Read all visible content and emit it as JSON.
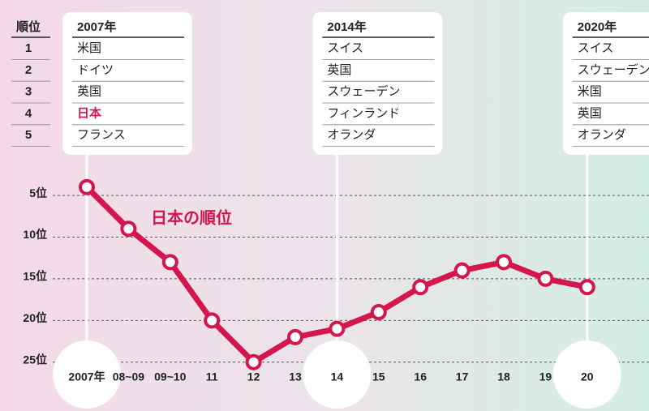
{
  "chart_data": {
    "type": "line",
    "categories": [
      "2007年",
      "08~09",
      "09~10",
      "11",
      "12",
      "13",
      "14",
      "15",
      "16",
      "17",
      "18",
      "19",
      "20"
    ],
    "series": [
      {
        "name": "日本の順位",
        "color": "#d4164c",
        "values": [
          4,
          9,
          13,
          20,
          25,
          22,
          21,
          19,
          16,
          14,
          13,
          15,
          16
        ]
      }
    ],
    "ylim": [
      1,
      26
    ],
    "inverted": true,
    "yticks": [
      {
        "value": 5,
        "label": "5位"
      },
      {
        "value": 10,
        "label": "10位"
      },
      {
        "value": 15,
        "label": "15位"
      },
      {
        "value": 20,
        "label": "20位"
      },
      {
        "value": 25,
        "label": "25位"
      }
    ],
    "grid": true,
    "rank_header": "順位",
    "ranks": [
      1,
      2,
      3,
      4,
      5
    ],
    "callouts": [
      {
        "title": "2007年",
        "category_index": 0,
        "items": [
          "米国",
          "ドイツ",
          "英国",
          "日本",
          "フランス"
        ],
        "highlight_item": 3
      },
      {
        "title": "2014年",
        "category_index": 6,
        "items": [
          "スイス",
          "英国",
          "スウェーデン",
          "フィンランド",
          "オランダ"
        ]
      },
      {
        "title": "2020年",
        "category_index": 12,
        "items": [
          "スイス",
          "スウェーデン",
          "米国",
          "英国",
          "オランダ"
        ]
      }
    ]
  }
}
